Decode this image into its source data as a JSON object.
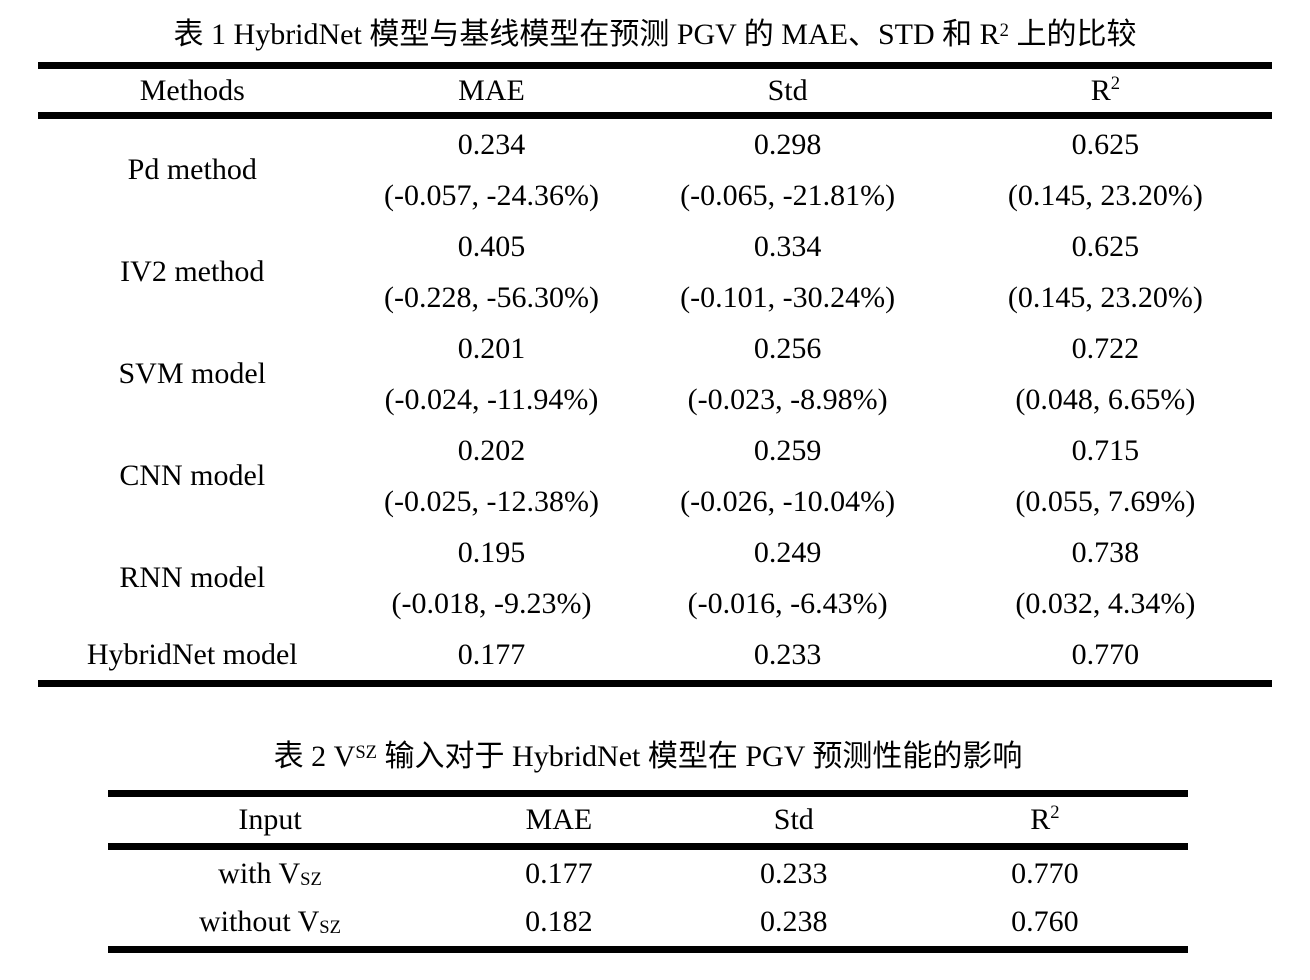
{
  "table1": {
    "title": {
      "pre": "表 1 HybridNet 模型与基线模型在预测 PGV 的 MAE、STD 和 R",
      "sup": "2",
      "post": " 上的比较"
    },
    "headers": {
      "methods": "Methods",
      "mae": "MAE",
      "std": "Std",
      "r2_base": "R",
      "r2_sup": "2"
    },
    "rows": [
      {
        "method": "Pd method",
        "mae": "0.234",
        "mae_delta": "(-0.057, -24.36%)",
        "std": "0.298",
        "std_delta": "(-0.065, -21.81%)",
        "r2": "0.625",
        "r2_delta": "(0.145, 23.20%)"
      },
      {
        "method": "IV2 method",
        "mae": "0.405",
        "mae_delta": "(-0.228, -56.30%)",
        "std": "0.334",
        "std_delta": "(-0.101, -30.24%)",
        "r2": "0.625",
        "r2_delta": "(0.145, 23.20%)"
      },
      {
        "method": "SVM model",
        "mae": "0.201",
        "mae_delta": "(-0.024, -11.94%)",
        "std": "0.256",
        "std_delta": "(-0.023, -8.98%)",
        "r2": "0.722",
        "r2_delta": "(0.048, 6.65%)"
      },
      {
        "method": "CNN model",
        "mae": "0.202",
        "mae_delta": "(-0.025, -12.38%)",
        "std": "0.259",
        "std_delta": "(-0.026, -10.04%)",
        "r2": "0.715",
        "r2_delta": "(0.055, 7.69%)"
      },
      {
        "method": "RNN model",
        "mae": "0.195",
        "mae_delta": "(-0.018, -9.23%)",
        "std": "0.249",
        "std_delta": "(-0.016, -6.43%)",
        "r2": "0.738",
        "r2_delta": "(0.032, 4.34%)"
      }
    ],
    "final_row": {
      "method": "HybridNet model",
      "mae": "0.177",
      "std": "0.233",
      "r2": "0.770"
    }
  },
  "table2": {
    "title": {
      "pre": "表 2 V",
      "sub": "SZ",
      "post": " 输入对于 HybridNet 模型在 PGV 预测性能的影响"
    },
    "headers": {
      "input": "Input",
      "mae": "MAE",
      "std": "Std",
      "r2_base": "R",
      "r2_sup": "2"
    },
    "rows": [
      {
        "input_pre": "with V",
        "input_sub": "SZ",
        "mae": "0.177",
        "std": "0.233",
        "r2": "0.770"
      },
      {
        "input_pre": "without V",
        "input_sub": "SZ",
        "mae": "0.182",
        "std": "0.238",
        "r2": "0.760"
      }
    ]
  }
}
